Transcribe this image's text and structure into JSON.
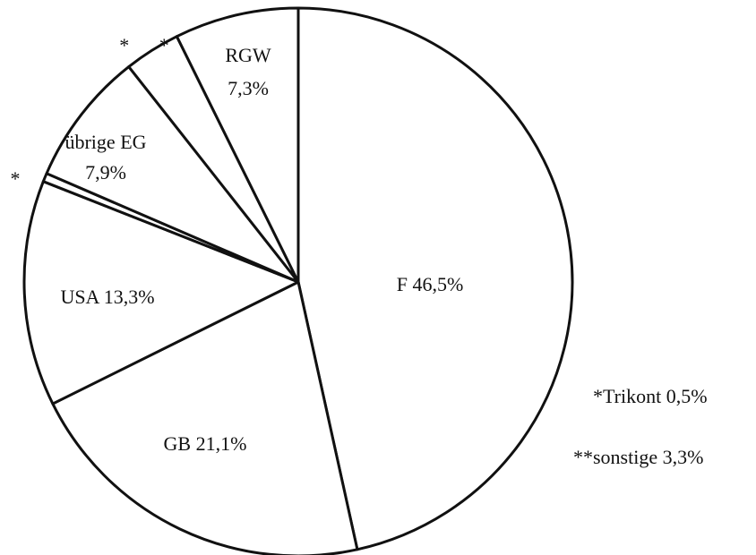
{
  "chart_data": {
    "type": "pie",
    "title": "",
    "slices": [
      {
        "name": "F",
        "value": 46.5,
        "label_lines": [
          "F 46,5%"
        ]
      },
      {
        "name": "GB",
        "value": 21.1,
        "label_lines": [
          "GB 21,1%"
        ]
      },
      {
        "name": "USA",
        "value": 13.3,
        "label_lines": [
          "USA 13,3%"
        ]
      },
      {
        "name": "Trikont",
        "value": 0.5,
        "label_lines": [
          "*"
        ]
      },
      {
        "name": "übrige EG",
        "value": 7.9,
        "label_lines": [
          "übrige EG",
          "7,9%"
        ]
      },
      {
        "name": "sonstige",
        "value": 3.3,
        "label_lines": [
          "* *"
        ]
      },
      {
        "name": "RGW",
        "value": 7.3,
        "label_lines": [
          "RGW",
          "7,3%"
        ]
      }
    ],
    "legend": [
      {
        "text": "*Trikont 0,5%"
      },
      {
        "text": "**sonstige 3,3%"
      }
    ],
    "colors": {
      "fill": "#ffffff",
      "stroke": "#111111"
    }
  }
}
